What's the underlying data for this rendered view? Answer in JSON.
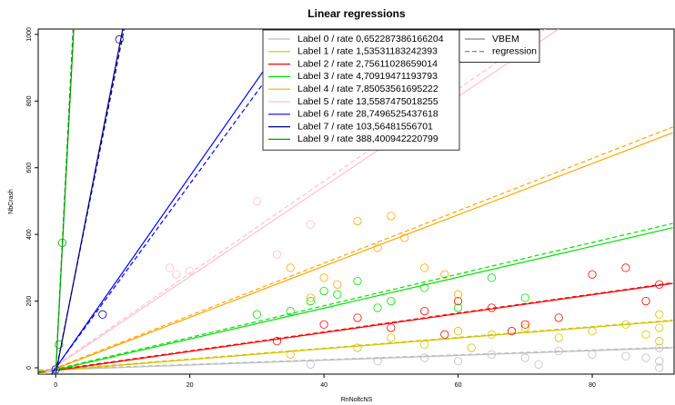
{
  "chart_data": {
    "type": "scatter",
    "title": "Linear regressions",
    "x_label": "RnNoltcNS",
    "y_label": "NbCrash",
    "xlim": [
      -2.6,
      92.2
    ],
    "ylim": [
      -19,
      1016
    ],
    "xticks": [
      0,
      20,
      40,
      60,
      80
    ],
    "yticks": [
      0,
      200,
      400,
      600,
      800,
      1000
    ],
    "line_styles": [
      {
        "name": "VBEM",
        "dashed": false
      },
      {
        "name": "regression",
        "dashed": true
      }
    ],
    "series": [
      {
        "name": "Label 0 / rate 0,652287386166204",
        "color": "#bebebe",
        "points": {
          "x": [
            38,
            48,
            55,
            60,
            65,
            70,
            75,
            80,
            85,
            90,
            90,
            90,
            88,
            72
          ],
          "y": [
            10,
            20,
            30,
            20,
            40,
            30,
            50,
            40,
            35,
            60,
            20,
            0,
            30,
            10
          ]
        },
        "vbem": {
          "x": [
            -2.5,
            92
          ],
          "y": [
            -8,
            60
          ]
        },
        "regression": {
          "x": [
            -2.5,
            92
          ],
          "y": [
            -6,
            62
          ]
        }
      },
      {
        "name": "Label 1 / rate 1,53531183242393",
        "color": "#d4c400",
        "points": {
          "x": [
            35,
            45,
            50,
            55,
            60,
            65,
            70,
            75,
            80,
            85,
            90,
            90,
            90,
            88,
            62
          ],
          "y": [
            40,
            60,
            90,
            70,
            110,
            100,
            120,
            90,
            110,
            130,
            160,
            120,
            80,
            100,
            60
          ]
        },
        "vbem": {
          "x": [
            -2.5,
            92
          ],
          "y": [
            -12,
            141
          ]
        },
        "regression": {
          "x": [
            -2.5,
            92
          ],
          "y": [
            -10,
            143
          ]
        }
      },
      {
        "name": "Label 2 / rate 2,75611028659014",
        "color": "#ff0000",
        "points": {
          "x": [
            33,
            40,
            45,
            50,
            55,
            60,
            65,
            70,
            75,
            80,
            85,
            88,
            90,
            58,
            68
          ],
          "y": [
            80,
            130,
            150,
            120,
            170,
            200,
            180,
            130,
            150,
            280,
            300,
            200,
            250,
            100,
            110
          ]
        },
        "vbem": {
          "x": [
            -2.5,
            92
          ],
          "y": [
            -15,
            253
          ]
        },
        "regression": {
          "x": [
            -2.5,
            92
          ],
          "y": [
            -13,
            255
          ]
        }
      },
      {
        "name": "Label 3 / rate 4,70919471193793",
        "color": "#00e000",
        "points": {
          "x": [
            30,
            35,
            40,
            42,
            45,
            50,
            55,
            60,
            65,
            70,
            48,
            38
          ],
          "y": [
            160,
            170,
            230,
            220,
            260,
            200,
            240,
            180,
            270,
            210,
            180,
            200
          ]
        },
        "vbem": {
          "x": [
            -2.5,
            92
          ],
          "y": [
            -18,
            420
          ]
        },
        "regression": {
          "x": [
            -2.5,
            92
          ],
          "y": [
            -16,
            433
          ]
        }
      },
      {
        "name": "Label 4 / rate 7,85053561695222",
        "color": "#ffa500",
        "points": {
          "x": [
            35,
            40,
            45,
            50,
            48,
            55,
            60,
            42,
            38,
            52,
            58
          ],
          "y": [
            300,
            270,
            440,
            455,
            360,
            300,
            220,
            250,
            210,
            390,
            280
          ]
        },
        "vbem": {
          "x": [
            -2.5,
            92
          ],
          "y": [
            -22,
            705
          ]
        },
        "regression": {
          "x": [
            -2.5,
            92
          ],
          "y": [
            -20,
            722
          ]
        }
      },
      {
        "name": "Label 5 / rate 13,5587475018255",
        "color": "#ffc0cb",
        "points": {
          "x": [
            17,
            20,
            30,
            38,
            33,
            18
          ],
          "y": [
            300,
            290,
            500,
            430,
            340,
            280
          ]
        },
        "vbem": {
          "x": [
            -2.5,
            75
          ],
          "y": [
            -30,
            1016
          ]
        },
        "regression": {
          "x": [
            -2.5,
            73
          ],
          "y": [
            -28,
            1016
          ]
        }
      },
      {
        "name": "Label 6 / rate 28,7496525437618",
        "color": "#0000ff",
        "points": {
          "x": [
            0
          ],
          "y": [
            -5
          ]
        },
        "vbem": {
          "x": [
            -1,
            35
          ],
          "y": [
            -30,
            1006
          ]
        },
        "regression": {
          "x": [
            -1,
            36.5
          ],
          "y": [
            -28,
            1006
          ]
        }
      },
      {
        "name": "Label 7 / rate 103,56481556701",
        "color": "#000080",
        "points": {
          "x": [
            9.5,
            7
          ],
          "y": [
            985,
            160
          ]
        },
        "vbem": {
          "x": [
            0,
            10
          ],
          "y": [
            -20,
            1016
          ]
        },
        "regression": {
          "x": [
            0,
            10.2
          ],
          "y": [
            -15,
            1016
          ]
        }
      },
      {
        "name": "Label 9 / rate 388,400942220799",
        "color": "#00a000",
        "points": {
          "x": [
            0.5,
            1
          ],
          "y": [
            70,
            375
          ]
        },
        "vbem": {
          "x": [
            0,
            2.7
          ],
          "y": [
            -20,
            1016
          ]
        },
        "regression": {
          "x": [
            0,
            2.6
          ],
          "y": [
            -18,
            1016
          ]
        }
      }
    ]
  }
}
